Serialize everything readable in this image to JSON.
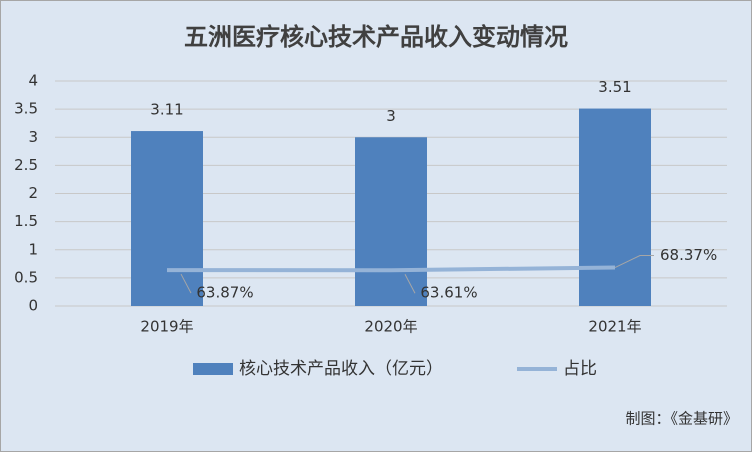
{
  "chart_data": {
    "type": "bar",
    "title": "五洲医疗核心技术产品收入变动情况",
    "categories": [
      "2019年",
      "2020年",
      "2021年"
    ],
    "series": [
      {
        "type": "bar",
        "name": "核心技术产品收入（亿元）",
        "color": "#4f81bd",
        "values": [
          3.11,
          3,
          3.51
        ]
      },
      {
        "type": "line",
        "name": "占比",
        "color": "#95b3d7",
        "values": [
          0.6387,
          0.6361,
          0.6837
        ],
        "value_labels": [
          "63.87%",
          "63.61%",
          "68.37%"
        ]
      }
    ],
    "ylim": [
      0,
      4
    ],
    "yticks": [
      0,
      0.5,
      1,
      1.5,
      2,
      2.5,
      3,
      3.5,
      4
    ],
    "grid": true,
    "source": "制图：《金基研》"
  }
}
